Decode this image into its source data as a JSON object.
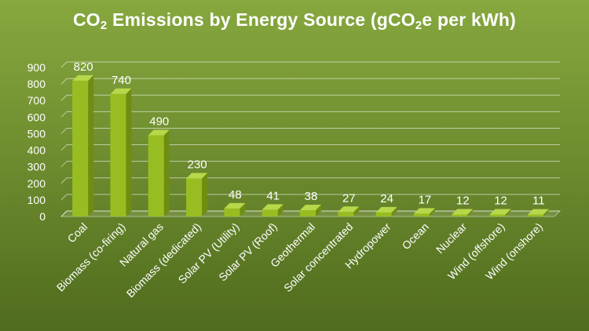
{
  "title": {
    "prefix": "CO",
    "sub1": "2",
    "middle": " Emissions by Energy Source (gCO",
    "sub2": "2",
    "suffix": "e per kWh)"
  },
  "colors": {
    "background_top": "#86a83e",
    "background_bottom": "#4f6b1d",
    "bar_front": "#98bd22",
    "bar_side": "#6f8d12",
    "bar_top": "#b7d84a",
    "text": "#ffffff"
  },
  "chart_data": {
    "type": "bar",
    "title": "CO2 Emissions by Energy Source (gCO2e per kWh)",
    "categories": [
      "Coal",
      "Biomass (co-firing)",
      "Natural gas",
      "Biomass (dedicated)",
      "Solar PV (Utility)",
      "Solar PV (Roof)",
      "Geothermal",
      "Solar concentrated",
      "Hydropower",
      "Ocean",
      "Nuclear",
      "Wind (offshore)",
      "Wind (onshore)"
    ],
    "values": [
      820,
      740,
      490,
      230,
      48,
      41,
      38,
      27,
      24,
      17,
      12,
      12,
      11
    ],
    "ylim": [
      0,
      900
    ],
    "yticks": [
      0,
      100,
      200,
      300,
      400,
      500,
      600,
      700,
      800,
      900
    ],
    "grid": true,
    "legend": "none",
    "data_labels": true,
    "style": "3d-clustered-column"
  }
}
